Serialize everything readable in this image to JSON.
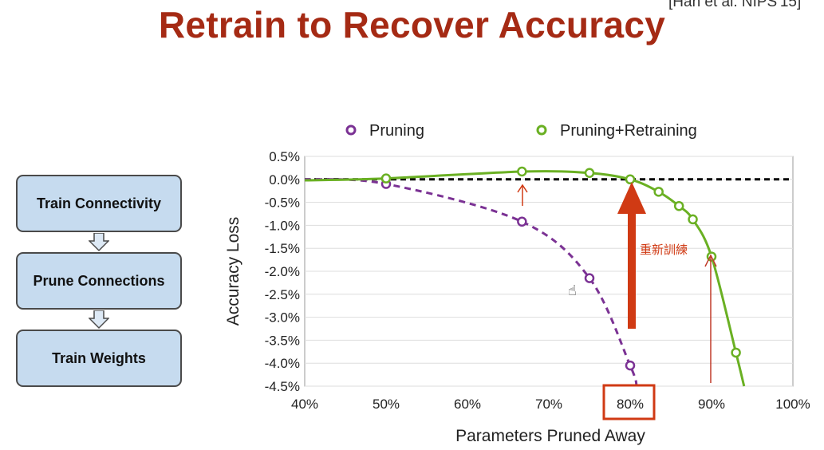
{
  "slide": {
    "title": "Retrain to Recover Accuracy",
    "citation": "[Han et al. NIPS'15]"
  },
  "flow": {
    "steps": [
      "Train Connectivity",
      "Prune Connections",
      "Train Weights"
    ]
  },
  "annotation": {
    "handwritten_note": "重新訓練",
    "highlighted_tick": "80%"
  },
  "colors": {
    "pruning": "#7b3294",
    "retraining": "#6ab023",
    "title": "#a52a14",
    "annotation": "#d03a14",
    "box_fill": "#c6dbef"
  },
  "chart_data": {
    "type": "line",
    "xlabel": "Parameters Pruned Away",
    "ylabel": "Accuracy Loss",
    "xlim": [
      40,
      100
    ],
    "ylim": [
      -4.5,
      0.5
    ],
    "x_ticks": [
      "40%",
      "50%",
      "60%",
      "70%",
      "80%",
      "90%",
      "100%"
    ],
    "y_ticks": [
      "0.5%",
      "0.0%",
      "-0.5%",
      "-1.0%",
      "-1.5%",
      "-2.0%",
      "-2.5%",
      "-3.0%",
      "-3.5%",
      "-4.0%",
      "-4.5%"
    ],
    "baseline": 0.0,
    "legend": [
      "Pruning",
      "Pruning+Retraining"
    ],
    "series": [
      {
        "name": "Pruning",
        "style": "dashed",
        "x": [
          50,
          66.7,
          75,
          80
        ],
        "y": [
          -0.1,
          -0.92,
          -2.15,
          -4.05
        ]
      },
      {
        "name": "Pruning+Retraining",
        "style": "solid",
        "x": [
          50,
          66.7,
          75,
          80,
          83.5,
          86,
          87.7,
          90,
          93
        ],
        "y": [
          0.02,
          0.17,
          0.14,
          0.0,
          -0.27,
          -0.58,
          -0.87,
          -1.68,
          -3.77
        ]
      }
    ]
  }
}
